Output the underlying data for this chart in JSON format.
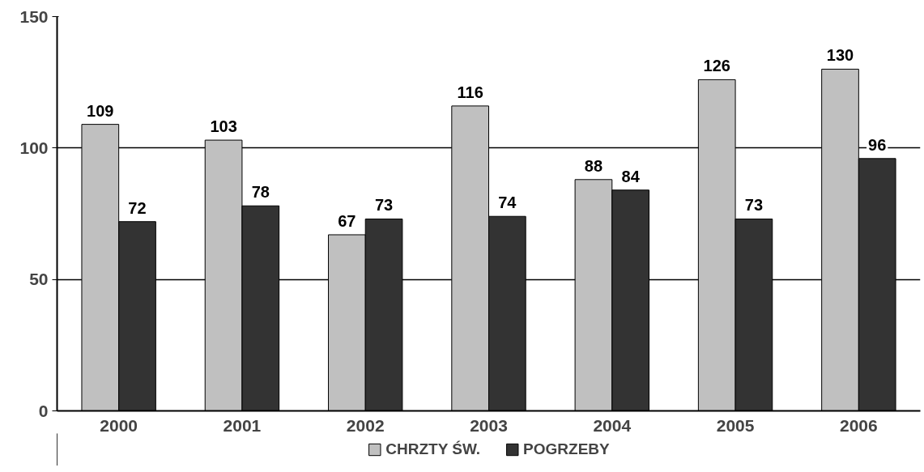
{
  "chart_data": {
    "type": "bar",
    "categories": [
      "2000",
      "2001",
      "2002",
      "2003",
      "2004",
      "2005",
      "2006"
    ],
    "series": [
      {
        "name": "CHRZTY ŚW.",
        "color": "#c0c0c0",
        "values": [
          109,
          103,
          67,
          116,
          88,
          126,
          130
        ]
      },
      {
        "name": "POGRZEBY",
        "color": "#333333",
        "values": [
          72,
          78,
          73,
          74,
          84,
          73,
          96
        ]
      }
    ],
    "ylim": [
      0,
      150
    ],
    "yticks": [
      0,
      50,
      100,
      150
    ],
    "grid": "y",
    "legend": "bottom",
    "data_labels": true
  }
}
